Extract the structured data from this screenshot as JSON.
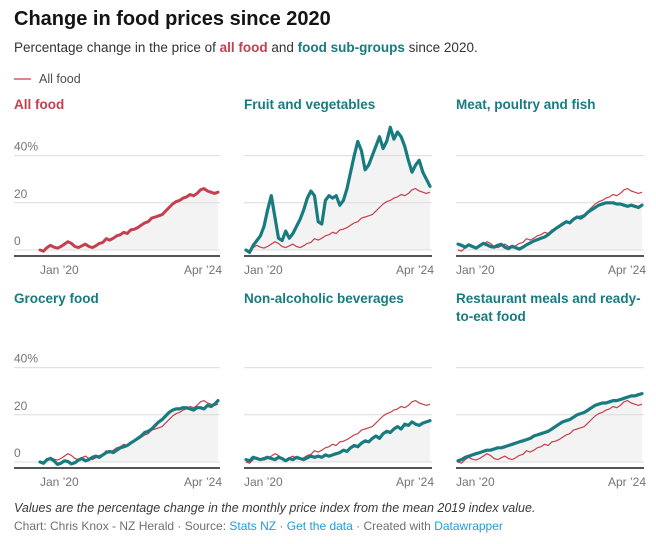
{
  "header": {
    "title": "Change in food prices since 2020",
    "subtitle": {
      "prefix": "Percentage change in the price of ",
      "highlight_red": "all food",
      "middle": " and ",
      "highlight_teal": "food sub-groups",
      "suffix": " since 2020."
    }
  },
  "legend": {
    "label": "All food",
    "swatch_color": "#d9858c"
  },
  "footer": {
    "note": "Values are the percentage change in the monthly price index from the mean 2019 index value.",
    "byline": {
      "prefix": "Chart: Chris Knox - NZ Herald · Source: ",
      "source_link": "Stats NZ",
      "sep1": " · ",
      "get_data_link": "Get the data",
      "sep2": " · Created with ",
      "datawrapper_link": "Datawrapper"
    }
  },
  "colors": {
    "all_food_red": "#c5404e",
    "sub_group_teal": "#177b80",
    "area_fill": "#f3f3f3",
    "grid_line": "#dcdcdc",
    "axis_line": "#1a1a1a",
    "tick_text": "#767676",
    "link_blue": "#1e9cd8"
  },
  "chart_data": {
    "type": "line",
    "title": "Change in food prices since 2020",
    "x_unit": "month",
    "x_start": "Jan 2020",
    "x_end": "Apr 2024",
    "x_tick_labels": [
      "Jan ’20",
      "Apr ’24"
    ],
    "y_axis": {
      "tick_labels": [
        "40%",
        "20",
        "0"
      ],
      "tick_values": [
        40,
        20,
        0
      ],
      "ylim": [
        -2.5,
        54.5
      ],
      "grid": true
    },
    "legend": [
      {
        "label": "All food",
        "color": "#c5404e"
      }
    ],
    "reference_series_label": "All food",
    "panels": [
      {
        "id": "all-food",
        "label": "All food",
        "color": "#c5404e",
        "show_y_labels": true,
        "show_reference": false,
        "values": [
          0,
          -0.5,
          1,
          2,
          1.2,
          0.8,
          1.5,
          2.5,
          3.5,
          2.8,
          1.5,
          1,
          1.8,
          2.5,
          1.5,
          1,
          1.8,
          2.8,
          3.2,
          4.8,
          4.2,
          5,
          6,
          6.5,
          7.5,
          7,
          8.5,
          8.8,
          9.5,
          10.5,
          11.5,
          12,
          13.5,
          14,
          14.5,
          15,
          16.5,
          18,
          19.5,
          20.5,
          21,
          22,
          22.5,
          23.5,
          23,
          24,
          25.5,
          26,
          25,
          24.5,
          24,
          24.5
        ]
      },
      {
        "id": "fruit-vegetables",
        "label": "Fruit and vegetables",
        "color": "#177b80",
        "show_y_labels": false,
        "show_reference": true,
        "values": [
          0,
          -1,
          2,
          4,
          6,
          10,
          17,
          23,
          14,
          5,
          4,
          8,
          5,
          7,
          10,
          13,
          17,
          22,
          25,
          23,
          12,
          11,
          21,
          23,
          22,
          23,
          19,
          21,
          26,
          33,
          40,
          46,
          42,
          34,
          36,
          40,
          44,
          48,
          43,
          46,
          52,
          47,
          50,
          48,
          44,
          38,
          33,
          36,
          38,
          33,
          30,
          27
        ]
      },
      {
        "id": "meat-poultry-fish",
        "label": "Meat, poultry and fish",
        "color": "#177b80",
        "show_y_labels": false,
        "show_reference": true,
        "values": [
          2.5,
          2,
          1.2,
          2.2,
          1.5,
          0.8,
          1.8,
          2.8,
          2.2,
          1.5,
          1.2,
          2,
          2.4,
          1.2,
          0.6,
          1.6,
          1,
          0.4,
          1.2,
          2.2,
          3,
          3.8,
          4.4,
          5,
          5.5,
          6.5,
          7.8,
          9,
          10,
          11,
          12,
          11.5,
          13,
          14,
          13.5,
          14.5,
          16,
          17,
          18,
          19,
          19.5,
          20,
          20,
          20,
          19.5,
          19.5,
          19,
          18.5,
          19,
          18.5,
          18,
          19
        ]
      },
      {
        "id": "grocery-food",
        "label": "Grocery food",
        "color": "#177b80",
        "show_y_labels": true,
        "show_reference": true,
        "values": [
          0,
          -0.5,
          1,
          1.5,
          0.5,
          -1,
          -0.5,
          0.5,
          0.2,
          -0.8,
          -0.3,
          0.8,
          1.5,
          0.5,
          1,
          2,
          2.5,
          2,
          3,
          4,
          4.5,
          4,
          5,
          6,
          6.5,
          7,
          8,
          9,
          10,
          11,
          12.5,
          13,
          14,
          15.5,
          17,
          18,
          19.5,
          21,
          22,
          22.5,
          22.5,
          23,
          23,
          22.5,
          22,
          23,
          23,
          22.5,
          24,
          23.5,
          24.5,
          26
        ]
      },
      {
        "id": "non-alcoholic-beverages",
        "label": "Non-alcoholic beverages",
        "color": "#177b80",
        "show_y_labels": false,
        "show_reference": true,
        "values": [
          1,
          0.5,
          2,
          1.5,
          1,
          1.5,
          2,
          1.5,
          1,
          2,
          1.5,
          0.5,
          1.5,
          1,
          2,
          1.5,
          1,
          1.8,
          2.5,
          2,
          2.5,
          2,
          3,
          2.5,
          3,
          3.5,
          4,
          5,
          4.5,
          6,
          7,
          6.5,
          8,
          9,
          8.5,
          10,
          11,
          10,
          12,
          13,
          12.5,
          14,
          15,
          14,
          16,
          15.5,
          17,
          16,
          15.5,
          16.5,
          17,
          17.5
        ]
      },
      {
        "id": "restaurant-ready-to-eat",
        "label": "Restaurant meals and ready-to-eat food",
        "color": "#177b80",
        "show_y_labels": false,
        "show_reference": true,
        "values": [
          0.5,
          1,
          2,
          2.5,
          3,
          3.5,
          4,
          4.5,
          5,
          5,
          5.5,
          6,
          6,
          6.5,
          7,
          7.5,
          8,
          8.5,
          9,
          9.5,
          10,
          11,
          11.5,
          12,
          12.5,
          13,
          14,
          15,
          16,
          17,
          17.5,
          18,
          19,
          20,
          20.5,
          21,
          22,
          23,
          24,
          24.5,
          25,
          25,
          25.5,
          26,
          26,
          26.5,
          27,
          27.5,
          28,
          28,
          28.5,
          29
        ]
      }
    ]
  }
}
